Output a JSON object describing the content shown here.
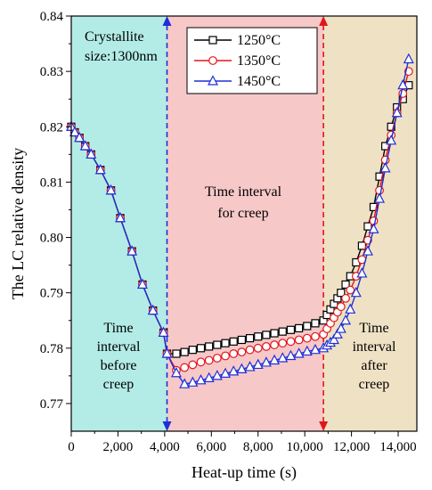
{
  "chart_data": {
    "type": "line",
    "title": "",
    "xlabel": "Heat-up time (s)",
    "ylabel": "The LC relative density",
    "xlim": [
      0,
      14800
    ],
    "ylim": [
      0.765,
      0.84
    ],
    "x_ticks": [
      0,
      2000,
      4000,
      6000,
      8000,
      10000,
      12000,
      14000
    ],
    "x_tick_labels": [
      "0",
      "2,000",
      "4,000",
      "6,000",
      "8,000",
      "10,000",
      "12,000",
      "14,000"
    ],
    "y_ticks": [
      0.77,
      0.78,
      0.79,
      0.8,
      0.81,
      0.82,
      0.83,
      0.84
    ],
    "y_tick_labels": [
      "0.77",
      "0.78",
      "0.79",
      "0.80",
      "0.81",
      "0.82",
      "0.83",
      "0.84"
    ],
    "grid": false,
    "legend_position": "top-center",
    "regions": [
      {
        "name": "before-creep",
        "x_start": 0,
        "x_end": 4100,
        "color": "#b3ece6"
      },
      {
        "name": "creep",
        "x_start": 4100,
        "x_end": 10800,
        "color": "#f7c8c8"
      },
      {
        "name": "after-creep",
        "x_start": 10800,
        "x_end": 14800,
        "color": "#efe2c4"
      }
    ],
    "vlines": [
      {
        "x": 4100,
        "color": "#1f2fd6"
      },
      {
        "x": 10800,
        "color": "#e0161c"
      }
    ],
    "annotations": {
      "crystallite": [
        "Crystallite",
        "size:1300nm"
      ],
      "before": [
        "Time",
        "interval",
        "before",
        "creep"
      ],
      "creep": [
        "Time interval",
        "for creep"
      ],
      "after": [
        "Time",
        "interval",
        "after",
        "creep"
      ]
    },
    "series": [
      {
        "name": "1250°C",
        "color": "#000000",
        "marker": "square",
        "x": [
          0,
          150,
          350,
          600,
          850,
          1250,
          1700,
          2100,
          2600,
          3050,
          3500,
          3950,
          4100,
          4500,
          4850,
          5200,
          5550,
          5900,
          6250,
          6600,
          6950,
          7300,
          7650,
          8000,
          8350,
          8700,
          9050,
          9400,
          9750,
          10100,
          10450,
          10800,
          10950,
          11100,
          11250,
          11400,
          11550,
          11750,
          11950,
          12200,
          12450,
          12700,
          12950,
          13200,
          13450,
          13700,
          13950,
          14200,
          14450
        ],
        "y": [
          0.82,
          0.819,
          0.818,
          0.8165,
          0.815,
          0.8122,
          0.8085,
          0.8035,
          0.7975,
          0.7915,
          0.7868,
          0.7828,
          0.779,
          0.779,
          0.7793,
          0.7797,
          0.78,
          0.7803,
          0.7806,
          0.7809,
          0.7812,
          0.7815,
          0.7818,
          0.7821,
          0.7824,
          0.7827,
          0.783,
          0.7833,
          0.7836,
          0.784,
          0.7845,
          0.785,
          0.786,
          0.787,
          0.788,
          0.789,
          0.79,
          0.7915,
          0.793,
          0.7955,
          0.7985,
          0.802,
          0.8055,
          0.811,
          0.8165,
          0.82,
          0.8235,
          0.825,
          0.8275
        ]
      },
      {
        "name": "1350°C",
        "color": "#e0161c",
        "marker": "circle",
        "x": [
          0,
          150,
          350,
          600,
          850,
          1250,
          1700,
          2100,
          2600,
          3050,
          3500,
          3950,
          4100,
          4500,
          4850,
          5200,
          5550,
          5900,
          6250,
          6600,
          6950,
          7300,
          7650,
          8000,
          8350,
          8700,
          9050,
          9400,
          9750,
          10100,
          10450,
          10800,
          10950,
          11100,
          11250,
          11400,
          11550,
          11750,
          11950,
          12200,
          12450,
          12700,
          12950,
          13200,
          13450,
          13700,
          13950,
          14200,
          14450
        ],
        "y": [
          0.82,
          0.819,
          0.818,
          0.8165,
          0.815,
          0.8122,
          0.8085,
          0.8035,
          0.7975,
          0.7915,
          0.7868,
          0.7828,
          0.779,
          0.776,
          0.7765,
          0.777,
          0.7775,
          0.7778,
          0.7782,
          0.7786,
          0.779,
          0.7793,
          0.7797,
          0.78,
          0.7803,
          0.7806,
          0.7809,
          0.7812,
          0.7815,
          0.7818,
          0.7821,
          0.7825,
          0.7835,
          0.7845,
          0.7855,
          0.7865,
          0.7875,
          0.789,
          0.7905,
          0.793,
          0.796,
          0.7995,
          0.803,
          0.8085,
          0.814,
          0.8185,
          0.8225,
          0.826,
          0.83
        ]
      },
      {
        "name": "1450°C",
        "color": "#1f2fd6",
        "marker": "triangle",
        "x": [
          0,
          150,
          350,
          600,
          850,
          1250,
          1700,
          2100,
          2600,
          3050,
          3500,
          3950,
          4100,
          4500,
          4850,
          5200,
          5550,
          5900,
          6250,
          6600,
          6950,
          7300,
          7650,
          8000,
          8350,
          8700,
          9050,
          9400,
          9750,
          10100,
          10450,
          10800,
          10950,
          11100,
          11250,
          11400,
          11550,
          11750,
          11950,
          12200,
          12450,
          12700,
          12950,
          13200,
          13450,
          13700,
          13950,
          14200,
          14450
        ],
        "y": [
          0.82,
          0.819,
          0.818,
          0.8165,
          0.815,
          0.8122,
          0.8085,
          0.8035,
          0.7975,
          0.7915,
          0.7868,
          0.7828,
          0.779,
          0.7755,
          0.7735,
          0.7738,
          0.7742,
          0.7746,
          0.775,
          0.7754,
          0.7758,
          0.7762,
          0.7766,
          0.777,
          0.7774,
          0.7778,
          0.7782,
          0.7786,
          0.779,
          0.7794,
          0.7797,
          0.78,
          0.7805,
          0.781,
          0.7815,
          0.7825,
          0.7835,
          0.785,
          0.787,
          0.79,
          0.7935,
          0.7975,
          0.8015,
          0.807,
          0.8125,
          0.8175,
          0.8225,
          0.8275,
          0.8322
        ]
      }
    ]
  }
}
